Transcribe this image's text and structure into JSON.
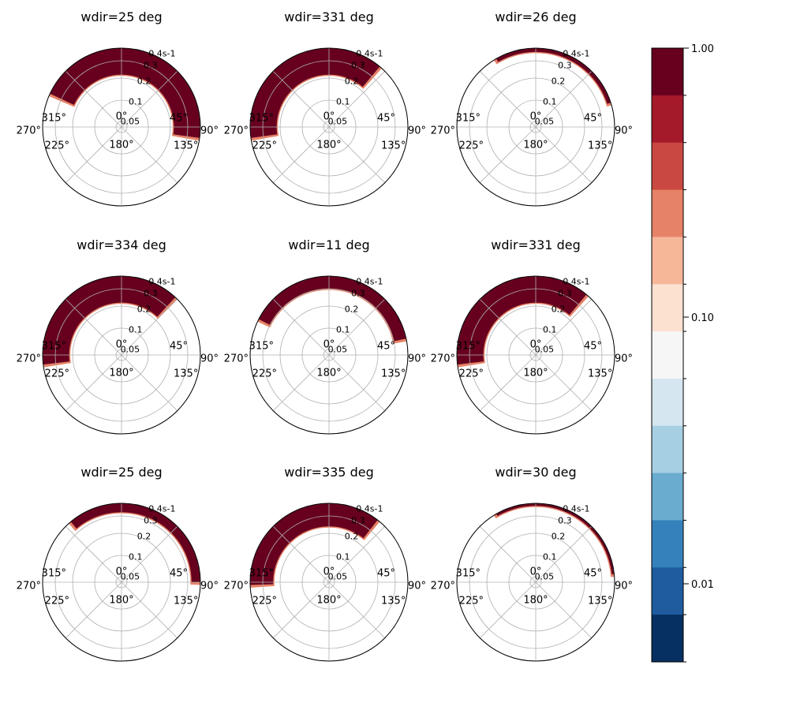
{
  "chart_data": {
    "type": "polar-contour-grid",
    "r_ticks": [
      "0.05",
      "0.1",
      "0.2",
      "0.3",
      "0.4s-1"
    ],
    "theta_ticks": [
      "0°",
      "45°",
      "90°",
      "135°",
      "180°",
      "225°",
      "270°",
      "315°"
    ],
    "colorbar": {
      "scale": "log",
      "ticks": [
        "1.00",
        "0.10",
        "0.01"
      ],
      "colors": [
        "#67001f",
        "#a51a2b",
        "#c94841",
        "#e58267",
        "#f6b799",
        "#fce0d0",
        "#f6f6f6",
        "#d5e6f0",
        "#a7cfe4",
        "#6aacd0",
        "#3581bb",
        "#1e5c9f",
        "#053061"
      ]
    },
    "panels": [
      {
        "title": "wdir=25 deg",
        "arc_start_deg": 295,
        "arc_end_deg": 98,
        "r_inner": 0.22
      },
      {
        "title": "wdir=331 deg",
        "arc_start_deg": 262,
        "arc_end_deg": 40,
        "r_inner": 0.22
      },
      {
        "title": "wdir=26 deg",
        "arc_start_deg": 330,
        "arc_end_deg": 72,
        "r_inner": 0.37
      },
      {
        "title": "wdir=334 deg",
        "arc_start_deg": 263,
        "arc_end_deg": 43,
        "r_inner": 0.22
      },
      {
        "title": "wdir=11 deg",
        "arc_start_deg": 297,
        "arc_end_deg": 78,
        "r_inner": 0.3
      },
      {
        "title": "wdir=331 deg",
        "arc_start_deg": 263,
        "arc_end_deg": 40,
        "r_inner": 0.22
      },
      {
        "title": "wdir=25 deg",
        "arc_start_deg": 320,
        "arc_end_deg": 90,
        "r_inner": 0.33
      },
      {
        "title": "wdir=335 deg",
        "arc_start_deg": 268,
        "arc_end_deg": 38,
        "r_inner": 0.24
      },
      {
        "title": "wdir=30 deg",
        "arc_start_deg": 330,
        "arc_end_deg": 84,
        "r_inner": 0.38
      }
    ]
  }
}
